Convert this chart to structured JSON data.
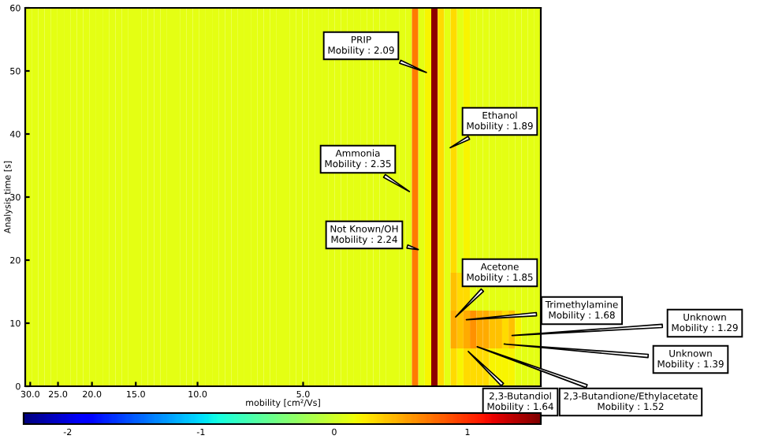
{
  "chart_data": {
    "type": "heatmap",
    "xlabel": "mobility [cm²/Vs]",
    "ylabel": "Analysis time [s]",
    "cells": [
      [
        0.1,
        0.1,
        0.1,
        0.1,
        0.1,
        0.1,
        0.1,
        0.1,
        0.1,
        0.1,
        0.1,
        0.1,
        0.1,
        0.1,
        0.1,
        0.1,
        0.1,
        0.1,
        0.1,
        0.1,
        0.1,
        0.1,
        0.1,
        0.1,
        0.1,
        0.1,
        0.1,
        0.1,
        0.1,
        0.1,
        0.1,
        0.1,
        0.1,
        0.1,
        0.1,
        0.1,
        0.1,
        0.1,
        0.1,
        0.1,
        0.1,
        0.1,
        0.1,
        0.1,
        0.1,
        0.1,
        0.1,
        0.1,
        0.1,
        0.1,
        0.1,
        0.1,
        0.1,
        0.1,
        0.1,
        0.1,
        0.1,
        0.1,
        0.1,
        0.1,
        0.7,
        0.1,
        0.2,
        1.5,
        0.3,
        0.1,
        0.3,
        0.1,
        0.2,
        0.1,
        0.1,
        0.1,
        0.1,
        0.1,
        0.1,
        0.1,
        0.1,
        0.1,
        0.1,
        0.1
      ],
      [
        0.1,
        0.1,
        0.1,
        0.1,
        0.1,
        0.1,
        0.1,
        0.1,
        0.1,
        0.1,
        0.1,
        0.1,
        0.1,
        0.1,
        0.1,
        0.1,
        0.1,
        0.1,
        0.1,
        0.1,
        0.1,
        0.1,
        0.1,
        0.1,
        0.1,
        0.1,
        0.1,
        0.1,
        0.1,
        0.1,
        0.1,
        0.1,
        0.1,
        0.1,
        0.1,
        0.1,
        0.1,
        0.1,
        0.1,
        0.1,
        0.1,
        0.1,
        0.1,
        0.1,
        0.1,
        0.1,
        0.1,
        0.1,
        0.1,
        0.1,
        0.1,
        0.1,
        0.1,
        0.1,
        0.1,
        0.1,
        0.1,
        0.1,
        0.1,
        0.1,
        0.7,
        0.1,
        0.2,
        1.5,
        0.3,
        0.1,
        0.3,
        0.1,
        0.2,
        0.1,
        0.1,
        0.1,
        0.1,
        0.1,
        0.1,
        0.1,
        0.1,
        0.1,
        0.1,
        0.1
      ],
      [
        0.1,
        0.1,
        0.1,
        0.1,
        0.1,
        0.1,
        0.1,
        0.1,
        0.1,
        0.1,
        0.1,
        0.1,
        0.1,
        0.1,
        0.1,
        0.1,
        0.1,
        0.1,
        0.1,
        0.1,
        0.1,
        0.1,
        0.1,
        0.1,
        0.1,
        0.1,
        0.1,
        0.1,
        0.1,
        0.1,
        0.1,
        0.1,
        0.1,
        0.1,
        0.1,
        0.1,
        0.1,
        0.1,
        0.1,
        0.1,
        0.1,
        0.1,
        0.1,
        0.1,
        0.1,
        0.1,
        0.1,
        0.1,
        0.1,
        0.1,
        0.1,
        0.1,
        0.1,
        0.1,
        0.1,
        0.1,
        0.1,
        0.1,
        0.1,
        0.1,
        0.7,
        0.1,
        0.2,
        1.5,
        0.3,
        0.1,
        0.3,
        0.1,
        0.2,
        0.1,
        0.1,
        0.1,
        0.1,
        0.1,
        0.1,
        0.1,
        0.1,
        0.1,
        0.1,
        0.1
      ],
      [
        0.1,
        0.1,
        0.1,
        0.1,
        0.1,
        0.1,
        0.1,
        0.1,
        0.1,
        0.1,
        0.1,
        0.1,
        0.1,
        0.1,
        0.1,
        0.1,
        0.1,
        0.1,
        0.1,
        0.1,
        0.1,
        0.1,
        0.1,
        0.1,
        0.1,
        0.1,
        0.1,
        0.1,
        0.1,
        0.1,
        0.1,
        0.1,
        0.1,
        0.1,
        0.1,
        0.1,
        0.1,
        0.1,
        0.1,
        0.1,
        0.1,
        0.1,
        0.1,
        0.1,
        0.1,
        0.1,
        0.1,
        0.1,
        0.1,
        0.1,
        0.1,
        0.1,
        0.1,
        0.1,
        0.1,
        0.1,
        0.1,
        0.1,
        0.1,
        0.1,
        0.7,
        0.1,
        0.2,
        1.5,
        0.3,
        0.1,
        0.3,
        0.1,
        0.2,
        0.1,
        0.1,
        0.1,
        0.1,
        0.1,
        0.1,
        0.1,
        0.1,
        0.1,
        0.1,
        0.1
      ],
      [
        0.1,
        0.1,
        0.1,
        0.1,
        0.1,
        0.1,
        0.1,
        0.1,
        0.1,
        0.1,
        0.1,
        0.1,
        0.1,
        0.1,
        0.1,
        0.1,
        0.1,
        0.1,
        0.1,
        0.1,
        0.1,
        0.1,
        0.1,
        0.1,
        0.1,
        0.1,
        0.1,
        0.1,
        0.1,
        0.1,
        0.1,
        0.1,
        0.1,
        0.1,
        0.1,
        0.1,
        0.1,
        0.1,
        0.1,
        0.1,
        0.1,
        0.1,
        0.1,
        0.1,
        0.1,
        0.1,
        0.1,
        0.1,
        0.1,
        0.1,
        0.1,
        0.1,
        0.1,
        0.1,
        0.1,
        0.1,
        0.1,
        0.1,
        0.1,
        0.1,
        0.7,
        0.1,
        0.2,
        1.5,
        0.3,
        0.1,
        0.3,
        0.1,
        0.2,
        0.1,
        0.1,
        0.1,
        0.1,
        0.1,
        0.1,
        0.1,
        0.1,
        0.1,
        0.1,
        0.1
      ],
      [
        0.1,
        0.1,
        0.1,
        0.1,
        0.1,
        0.1,
        0.1,
        0.1,
        0.1,
        0.1,
        0.1,
        0.1,
        0.1,
        0.1,
        0.1,
        0.1,
        0.1,
        0.1,
        0.1,
        0.1,
        0.1,
        0.1,
        0.1,
        0.1,
        0.1,
        0.1,
        0.1,
        0.1,
        0.1,
        0.1,
        0.1,
        0.1,
        0.1,
        0.1,
        0.1,
        0.1,
        0.1,
        0.1,
        0.1,
        0.1,
        0.1,
        0.1,
        0.1,
        0.1,
        0.1,
        0.1,
        0.1,
        0.1,
        0.1,
        0.1,
        0.1,
        0.1,
        0.1,
        0.1,
        0.1,
        0.1,
        0.1,
        0.1,
        0.1,
        0.1,
        0.7,
        0.1,
        0.2,
        1.5,
        0.3,
        0.1,
        0.3,
        0.1,
        0.2,
        0.1,
        0.1,
        0.1,
        0.1,
        0.1,
        0.1,
        0.1,
        0.1,
        0.1,
        0.1,
        0.1
      ],
      [
        0.1,
        0.1,
        0.1,
        0.1,
        0.1,
        0.1,
        0.1,
        0.1,
        0.1,
        0.1,
        0.1,
        0.1,
        0.1,
        0.1,
        0.1,
        0.1,
        0.1,
        0.1,
        0.1,
        0.1,
        0.1,
        0.1,
        0.1,
        0.1,
        0.1,
        0.1,
        0.1,
        0.1,
        0.1,
        0.1,
        0.1,
        0.1,
        0.1,
        0.1,
        0.1,
        0.1,
        0.1,
        0.1,
        0.1,
        0.1,
        0.1,
        0.1,
        0.1,
        0.1,
        0.1,
        0.1,
        0.1,
        0.1,
        0.1,
        0.1,
        0.1,
        0.1,
        0.1,
        0.1,
        0.1,
        0.1,
        0.1,
        0.1,
        0.1,
        0.1,
        0.7,
        0.1,
        0.2,
        1.5,
        0.3,
        0.1,
        0.3,
        0.1,
        0.2,
        0.1,
        0.1,
        0.1,
        0.1,
        0.1,
        0.1,
        0.1,
        0.1,
        0.1,
        0.1,
        0.1
      ],
      [
        0.1,
        0.1,
        0.1,
        0.1,
        0.1,
        0.1,
        0.1,
        0.1,
        0.1,
        0.1,
        0.1,
        0.1,
        0.1,
        0.1,
        0.1,
        0.1,
        0.1,
        0.1,
        0.1,
        0.1,
        0.1,
        0.1,
        0.1,
        0.1,
        0.1,
        0.1,
        0.1,
        0.1,
        0.1,
        0.1,
        0.1,
        0.1,
        0.1,
        0.1,
        0.1,
        0.1,
        0.1,
        0.1,
        0.1,
        0.1,
        0.1,
        0.1,
        0.1,
        0.1,
        0.1,
        0.1,
        0.1,
        0.1,
        0.1,
        0.1,
        0.1,
        0.1,
        0.1,
        0.1,
        0.1,
        0.1,
        0.1,
        0.1,
        0.1,
        0.1,
        0.7,
        0.1,
        0.2,
        1.5,
        0.3,
        0.1,
        0.4,
        0.3,
        0.3,
        0.1,
        0.1,
        0.1,
        0.1,
        0.1,
        0.1,
        0.1,
        0.1,
        0.1,
        0.1,
        0.1
      ],
      [
        0.1,
        0.1,
        0.1,
        0.1,
        0.1,
        0.1,
        0.1,
        0.1,
        0.1,
        0.1,
        0.1,
        0.1,
        0.1,
        0.1,
        0.1,
        0.1,
        0.1,
        0.1,
        0.1,
        0.1,
        0.1,
        0.1,
        0.1,
        0.1,
        0.1,
        0.1,
        0.1,
        0.1,
        0.1,
        0.1,
        0.1,
        0.1,
        0.1,
        0.1,
        0.1,
        0.1,
        0.1,
        0.1,
        0.1,
        0.1,
        0.1,
        0.1,
        0.1,
        0.1,
        0.1,
        0.1,
        0.1,
        0.1,
        0.1,
        0.1,
        0.1,
        0.1,
        0.1,
        0.1,
        0.1,
        0.1,
        0.1,
        0.1,
        0.1,
        0.1,
        0.7,
        0.1,
        0.2,
        1.5,
        0.3,
        0.1,
        0.5,
        0.4,
        0.5,
        0.6,
        0.5,
        0.5,
        0.4,
        0.4,
        0.3,
        0.4,
        0.2,
        0.1,
        0.1,
        0.1
      ],
      [
        0.1,
        0.1,
        0.1,
        0.1,
        0.1,
        0.1,
        0.1,
        0.1,
        0.1,
        0.1,
        0.1,
        0.1,
        0.1,
        0.1,
        0.1,
        0.1,
        0.1,
        0.1,
        0.1,
        0.1,
        0.1,
        0.1,
        0.1,
        0.1,
        0.1,
        0.1,
        0.1,
        0.1,
        0.1,
        0.1,
        0.1,
        0.1,
        0.1,
        0.1,
        0.1,
        0.1,
        0.1,
        0.1,
        0.1,
        0.1,
        0.1,
        0.1,
        0.1,
        0.1,
        0.1,
        0.1,
        0.1,
        0.1,
        0.1,
        0.1,
        0.1,
        0.1,
        0.1,
        0.1,
        0.1,
        0.1,
        0.1,
        0.1,
        0.1,
        0.1,
        0.7,
        0.1,
        0.2,
        1.5,
        0.3,
        0.1,
        0.3,
        0.2,
        0.3,
        0.3,
        0.3,
        0.3,
        0.2,
        0.2,
        0.2,
        0.2,
        0.1,
        0.1,
        0.1,
        0.1
      ]
    ],
    "log": "x",
    "xlim": [
      31,
      1.05
    ],
    "ylim": [
      0,
      60
    ],
    "xticks": [
      {
        "value": 30,
        "label": "30.0"
      },
      {
        "value": 25,
        "label": "25.0"
      },
      {
        "value": 20,
        "label": "20.0"
      },
      {
        "value": 15,
        "label": "15.0"
      },
      {
        "value": 10,
        "label": "10.0"
      },
      {
        "value": 5,
        "label": "5.0"
      }
    ],
    "yticks": [
      0,
      10,
      20,
      30,
      40,
      50,
      60
    ],
    "clim": [
      -2.33,
      1.55
    ],
    "cticks": [
      -2,
      -1,
      0,
      1
    ],
    "annotations": [
      "PRIP\nMobility : 2.09",
      "Ethanol\nMobility : 1.89",
      "Ammonia\nMobility : 2.35",
      "Not Known/OH\nMobility : 2.24",
      "Acetone\nMobility : 1.85",
      "Trimethylamine\nMobility : 1.68",
      "Unknown\nMobility : 1.29",
      "Unknown\nMobility : 1.39",
      "2,3-Butandiol\nMobility : 1.64",
      "2,3-Butandione/Ethylacetate\nMobility : 1.52"
    ]
  }
}
